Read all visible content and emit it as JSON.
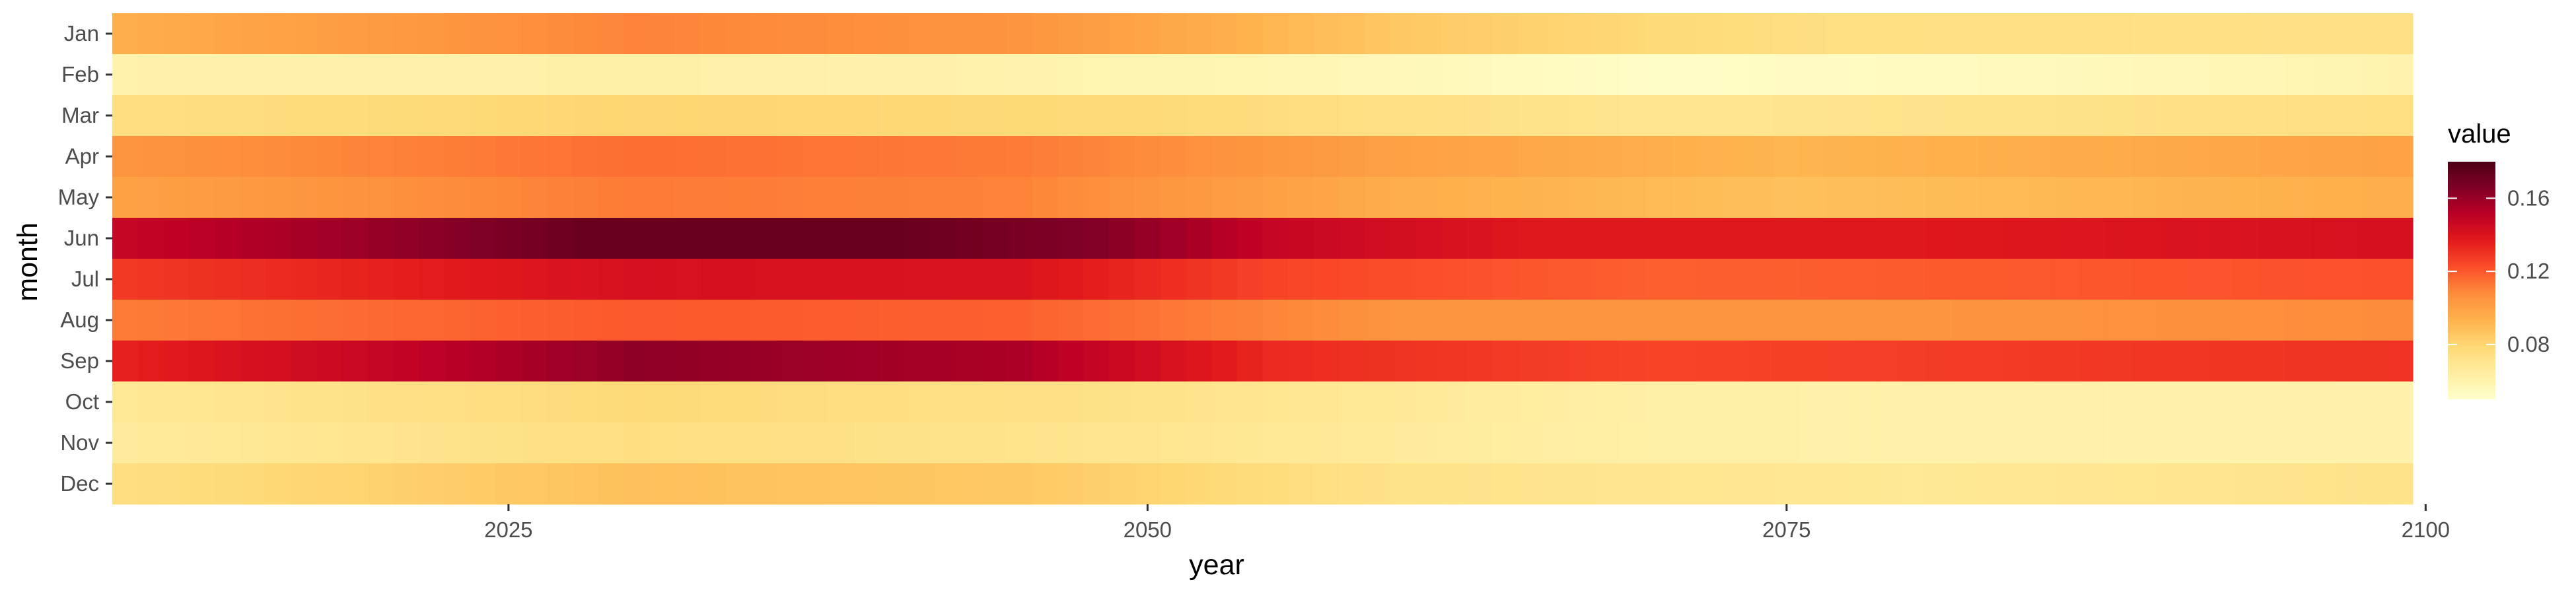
{
  "chart_data": {
    "type": "heatmap",
    "title": "",
    "xlabel": "year",
    "ylabel": "month",
    "x_range": [
      2010,
      2100
    ],
    "x_ticks": [
      2025,
      2050,
      2075,
      2100
    ],
    "y_categories": [
      "Jan",
      "Feb",
      "Mar",
      "Apr",
      "May",
      "Jun",
      "Jul",
      "Aug",
      "Sep",
      "Oct",
      "Nov",
      "Dec"
    ],
    "legend": {
      "title": "value",
      "ticks": [
        0.08,
        0.12,
        0.16
      ],
      "range": [
        0.05,
        0.18
      ],
      "palette": "YlOrRd",
      "placement": "right"
    },
    "grid": false,
    "series": [
      {
        "name": "Jan",
        "keypoints": [
          [
            2010,
            0.095
          ],
          [
            2030,
            0.11
          ],
          [
            2045,
            0.105
          ],
          [
            2060,
            0.085
          ],
          [
            2075,
            0.075
          ],
          [
            2100,
            0.073
          ]
        ]
      },
      {
        "name": "Feb",
        "keypoints": [
          [
            2010,
            0.06
          ],
          [
            2030,
            0.062
          ],
          [
            2055,
            0.058
          ],
          [
            2070,
            0.052
          ],
          [
            2085,
            0.055
          ],
          [
            2100,
            0.06
          ]
        ]
      },
      {
        "name": "Mar",
        "keypoints": [
          [
            2010,
            0.075
          ],
          [
            2030,
            0.08
          ],
          [
            2050,
            0.078
          ],
          [
            2070,
            0.07
          ],
          [
            2085,
            0.072
          ],
          [
            2100,
            0.075
          ]
        ]
      },
      {
        "name": "Apr",
        "keypoints": [
          [
            2010,
            0.105
          ],
          [
            2030,
            0.115
          ],
          [
            2045,
            0.112
          ],
          [
            2060,
            0.1
          ],
          [
            2075,
            0.092
          ],
          [
            2100,
            0.1
          ]
        ]
      },
      {
        "name": "May",
        "keypoints": [
          [
            2010,
            0.1
          ],
          [
            2030,
            0.112
          ],
          [
            2045,
            0.11
          ],
          [
            2060,
            0.095
          ],
          [
            2075,
            0.088
          ],
          [
            2100,
            0.095
          ]
        ]
      },
      {
        "name": "Jun",
        "keypoints": [
          [
            2010,
            0.148
          ],
          [
            2020,
            0.16
          ],
          [
            2028,
            0.172
          ],
          [
            2040,
            0.172
          ],
          [
            2048,
            0.165
          ],
          [
            2055,
            0.148
          ],
          [
            2065,
            0.138
          ],
          [
            2080,
            0.138
          ],
          [
            2100,
            0.142
          ]
        ]
      },
      {
        "name": "Jul",
        "keypoints": [
          [
            2010,
            0.128
          ],
          [
            2030,
            0.142
          ],
          [
            2045,
            0.14
          ],
          [
            2055,
            0.125
          ],
          [
            2070,
            0.118
          ],
          [
            2085,
            0.12
          ],
          [
            2100,
            0.122
          ]
        ]
      },
      {
        "name": "Aug",
        "keypoints": [
          [
            2010,
            0.112
          ],
          [
            2030,
            0.12
          ],
          [
            2045,
            0.118
          ],
          [
            2060,
            0.105
          ],
          [
            2080,
            0.105
          ],
          [
            2100,
            0.108
          ]
        ]
      },
      {
        "name": "Sep",
        "keypoints": [
          [
            2010,
            0.135
          ],
          [
            2020,
            0.148
          ],
          [
            2030,
            0.162
          ],
          [
            2045,
            0.155
          ],
          [
            2055,
            0.132
          ],
          [
            2070,
            0.125
          ],
          [
            2085,
            0.128
          ],
          [
            2100,
            0.13
          ]
        ]
      },
      {
        "name": "Oct",
        "keypoints": [
          [
            2010,
            0.068
          ],
          [
            2030,
            0.078
          ],
          [
            2050,
            0.072
          ],
          [
            2070,
            0.062
          ],
          [
            2100,
            0.06
          ]
        ]
      },
      {
        "name": "Nov",
        "keypoints": [
          [
            2010,
            0.066
          ],
          [
            2030,
            0.075
          ],
          [
            2050,
            0.07
          ],
          [
            2070,
            0.062
          ],
          [
            2100,
            0.06
          ]
        ]
      },
      {
        "name": "Dec",
        "keypoints": [
          [
            2010,
            0.075
          ],
          [
            2030,
            0.088
          ],
          [
            2045,
            0.085
          ],
          [
            2060,
            0.072
          ],
          [
            2080,
            0.068
          ],
          [
            2100,
            0.072
          ]
        ]
      }
    ]
  }
}
